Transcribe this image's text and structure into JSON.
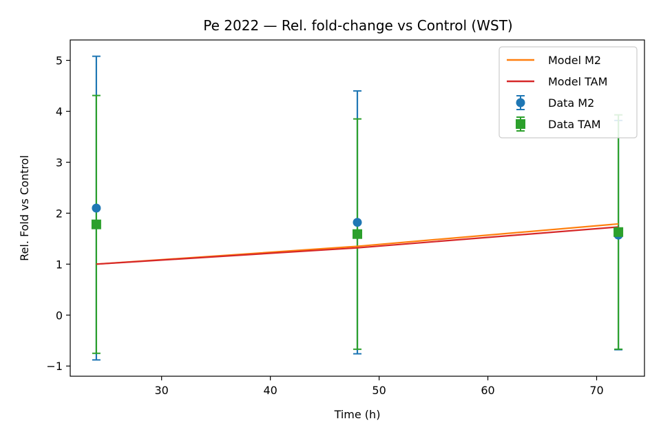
{
  "chart_data": {
    "type": "line",
    "title": "Pe 2022 — Rel. fold-change vs Control (WST)",
    "xlabel": "Time (h)",
    "ylabel": "Rel. Fold vs Control",
    "xlim": [
      21.6,
      74.4
    ],
    "ylim": [
      -1.2,
      5.4
    ],
    "xticks": [
      30,
      40,
      50,
      60,
      70
    ],
    "yticks": [
      -1,
      0,
      1,
      2,
      3,
      4,
      5
    ],
    "xtick_labels": [
      "30",
      "40",
      "50",
      "60",
      "70"
    ],
    "ytick_labels": [
      "−1",
      "0",
      "1",
      "2",
      "3",
      "4",
      "5"
    ],
    "grid": false,
    "legend_position": "top-right",
    "series": [
      {
        "name": "Model M2",
        "kind": "line",
        "color": "#ff7f0e",
        "x": [
          24,
          48,
          72
        ],
        "y": [
          1.0,
          1.35,
          1.79
        ]
      },
      {
        "name": "Model TAM",
        "kind": "line",
        "color": "#d62728",
        "x": [
          24,
          48,
          72
        ],
        "y": [
          1.0,
          1.32,
          1.73
        ]
      },
      {
        "name": "Data M2",
        "kind": "errorbar",
        "marker": "circle",
        "color": "#1f77b4",
        "x": [
          24,
          48,
          72
        ],
        "y": [
          2.1,
          1.82,
          1.57
        ],
        "yerr": [
          2.98,
          2.58,
          2.25
        ]
      },
      {
        "name": "Data TAM",
        "kind": "errorbar",
        "marker": "square",
        "color": "#2ca02c",
        "x": [
          24,
          48,
          72
        ],
        "y": [
          1.78,
          1.59,
          1.63
        ],
        "yerr": [
          2.53,
          2.26,
          2.3
        ]
      }
    ]
  }
}
